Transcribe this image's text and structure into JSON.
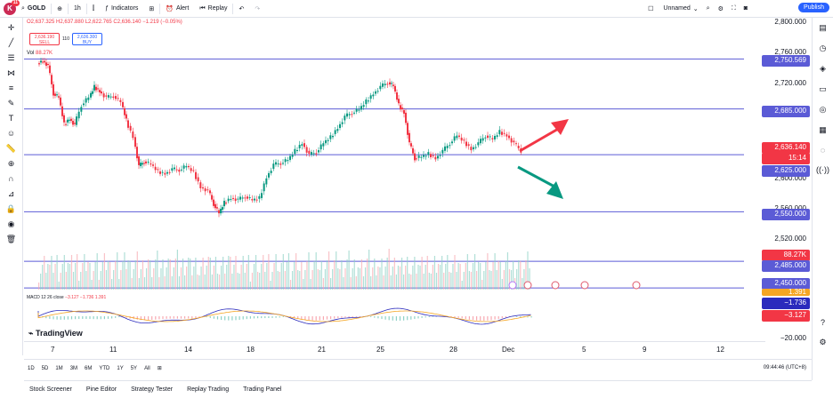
{
  "topbar": {
    "badge": "11",
    "symbol": "GOLD",
    "interval": "1h",
    "indicators": "Indicators",
    "alert": "Alert",
    "replay": "Replay",
    "layout_name": "Unnamed",
    "publish": "Publish"
  },
  "legend": {
    "ohlc": "O2,637.325 H2,637.880 L2,622.765 C2,636.140 −1.219 (−0.05%)",
    "sell_price": "2,636.190",
    "sell_label": "SELL",
    "spread": "110",
    "buy_price": "2,636.300",
    "buy_label": "BUY",
    "vol_label": "Vol",
    "vol_value": "88.27K",
    "macd_label": "MACD 12 26 close",
    "macd_values": "−3.127  −1.736  1.391"
  },
  "y_axis": {
    "ticks": [
      "2,800.000",
      "2,760.000",
      "2,720.000",
      "2,600.000",
      "2,560.000",
      "2,520.000",
      "−20.000"
    ],
    "tags": [
      {
        "label": "2,750.569",
        "color": "#5b5bd6"
      },
      {
        "label": "2,685.000",
        "color": "#5b5bd6"
      },
      {
        "label": "2,636.140",
        "color": "#f23645"
      },
      {
        "label": "15:14",
        "color": "#f23645"
      },
      {
        "label": "2,625.000",
        "color": "#5b5bd6"
      },
      {
        "label": "2,550.000",
        "color": "#5b5bd6"
      },
      {
        "label": "88.27K",
        "color": "#f23645"
      },
      {
        "label": "2,485.000",
        "color": "#5b5bd6"
      },
      {
        "label": "2,450.000",
        "color": "#5b5bd6"
      },
      {
        "label": "1.391",
        "color": "#f5a623"
      },
      {
        "label": "−1.736",
        "color": "#2b2bbd"
      },
      {
        "label": "−3.127",
        "color": "#f23645"
      }
    ]
  },
  "x_axis": {
    "ticks": [
      "7",
      "11",
      "14",
      "18",
      "21",
      "25",
      "28",
      "Dec",
      "5",
      "9",
      "12"
    ]
  },
  "timeframes": [
    "1D",
    "5D",
    "1M",
    "3M",
    "6M",
    "YTD",
    "1Y",
    "5Y",
    "All"
  ],
  "clock": "09:44:46 (UTC+8)",
  "footer": [
    "Stock Screener",
    "Pine Editor",
    "Strategy Tester",
    "Replay Trading",
    "Trading Panel"
  ],
  "branding": "TradingView",
  "levels": [
    2750.569,
    2685.0,
    2625.0,
    2550.0,
    2485.0,
    2450.0
  ],
  "colors": {
    "up": "#089981",
    "down": "#f23645",
    "level": "#5b5bd6",
    "arrow_up": "#f23645",
    "arrow_down": "#089981"
  }
}
